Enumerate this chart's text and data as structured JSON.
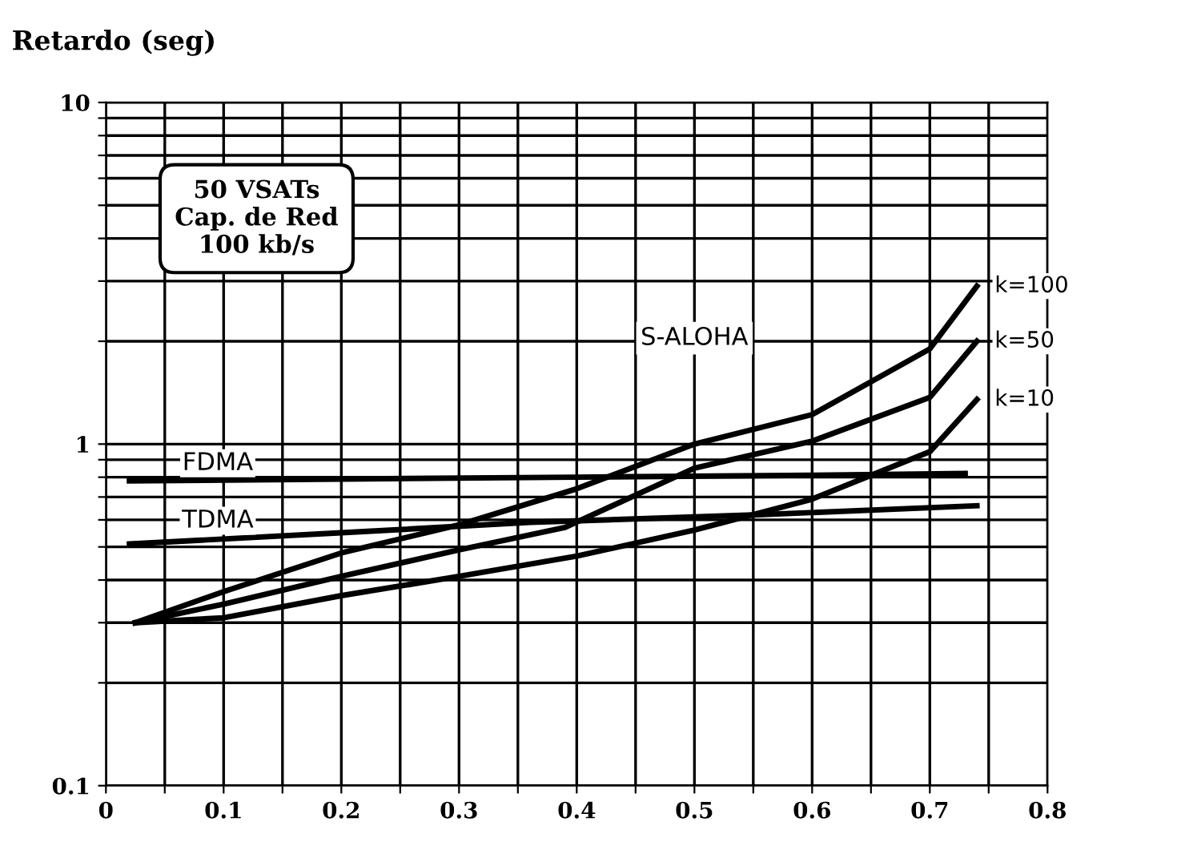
{
  "chart_data": {
    "type": "line",
    "ylabel": "Retardo (seg)",
    "log": "y",
    "grid": true,
    "marker": "none",
    "line_style": "solid",
    "legend": false,
    "annotations": [
      "50 VSATs\nCap. de Red\n100 kb/s",
      "S-ALOHA"
    ],
    "xlim": [
      0,
      0.8
    ],
    "ylim": [
      0.1,
      10
    ],
    "xticks": [
      0,
      {
        "value": 0.05,
        "label": null
      },
      0.1,
      {
        "value": 0.15,
        "label": null
      },
      0.2,
      {
        "value": 0.25,
        "label": null
      },
      0.3,
      {
        "value": 0.35,
        "label": null
      },
      0.4,
      {
        "value": 0.45,
        "label": null
      },
      0.5,
      {
        "value": 0.55,
        "label": null
      },
      0.6,
      {
        "value": 0.65,
        "label": null
      },
      0.7,
      {
        "value": 0.75,
        "label": null
      },
      0.8
    ],
    "yticks": [
      0.1,
      {
        "value": 0.2,
        "label": null
      },
      {
        "value": 0.3,
        "label": null
      },
      {
        "value": 0.4,
        "label": null
      },
      {
        "value": 0.5,
        "label": null
      },
      {
        "value": 0.6,
        "label": null
      },
      {
        "value": 0.7,
        "label": null
      },
      {
        "value": 0.8,
        "label": null
      },
      {
        "value": 0.9,
        "label": null
      },
      1,
      {
        "value": 2,
        "label": null
      },
      {
        "value": 3,
        "label": null
      },
      {
        "value": 4,
        "label": null
      },
      {
        "value": 5,
        "label": null
      },
      {
        "value": 6,
        "label": null
      },
      {
        "value": 7,
        "label": null
      },
      {
        "value": 8,
        "label": null
      },
      {
        "value": 9,
        "label": null
      },
      10
    ],
    "series": [
      {
        "name": "FDMA",
        "color": "#000000",
        "x": [
          0.02,
          0.2,
          0.4,
          0.6,
          0.73
        ],
        "values": [
          0.78,
          0.79,
          0.8,
          0.81,
          0.82
        ]
      },
      {
        "name": "TDMA",
        "color": "#000000",
        "x": [
          0.02,
          0.2,
          0.36,
          0.55,
          0.74
        ],
        "values": [
          0.51,
          0.55,
          0.59,
          0.62,
          0.66
        ]
      },
      {
        "name": "k=100",
        "color": "#000000",
        "x": [
          0.025,
          0.1,
          0.2,
          0.3,
          0.4,
          0.5,
          0.6,
          0.7,
          0.74
        ],
        "values": [
          0.3,
          0.37,
          0.48,
          0.58,
          0.74,
          1.0,
          1.22,
          1.9,
          2.9
        ]
      },
      {
        "name": "k=50",
        "color": "#000000",
        "x": [
          0.025,
          0.1,
          0.2,
          0.3,
          0.39,
          0.5,
          0.6,
          0.7,
          0.74
        ],
        "values": [
          0.3,
          0.34,
          0.41,
          0.49,
          0.57,
          0.85,
          1.02,
          1.37,
          2.0
        ]
      },
      {
        "name": "k=10",
        "color": "#000000",
        "x": [
          0.025,
          0.1,
          0.2,
          0.3,
          0.4,
          0.5,
          0.6,
          0.7,
          0.74
        ],
        "values": [
          0.3,
          0.31,
          0.36,
          0.41,
          0.47,
          0.56,
          0.69,
          0.95,
          1.35
        ]
      }
    ]
  }
}
